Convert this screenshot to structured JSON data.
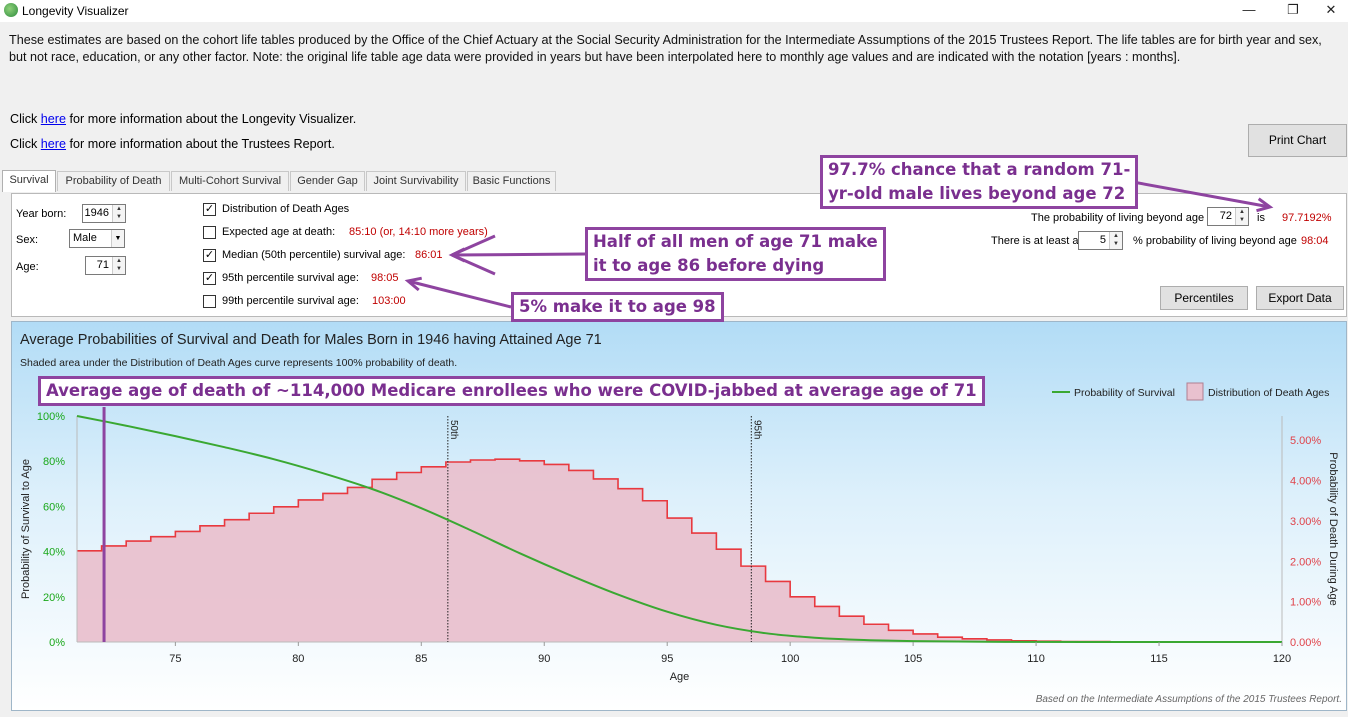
{
  "window": {
    "title": "Longevity Visualizer",
    "min": "—",
    "max": "❐",
    "close": "✕"
  },
  "intro": {
    "text": "These estimates are based on the cohort life tables produced by the Office of the Chief Actuary at the Social Security Administration for the Intermediate Assumptions of the 2015 Trustees Report. The life tables are for birth year and sex, but not race, education, or any other factor. Note: the original life table age data were provided in years but have been interpolated here to monthly age values and are indicated with the notation [years : months]."
  },
  "links": [
    {
      "prefix": "Click ",
      "link": "here",
      "suffix": " for more information about the Longevity Visualizer."
    },
    {
      "prefix": "Click ",
      "link": "here",
      "suffix": " for more information about the Trustees Report."
    }
  ],
  "buttons": {
    "print": "Print Chart",
    "percentiles": "Percentiles",
    "export": "Export Data"
  },
  "tabs": [
    "Survival",
    "Probability of Death",
    "Multi-Cohort Survival",
    "Gender Gap",
    "Joint Survivability",
    "Basic Functions"
  ],
  "controls": {
    "year_label": "Year born:",
    "year": "1946",
    "sex_label": "Sex:",
    "sex": "Male",
    "age_label": "Age:",
    "age": "71"
  },
  "options": [
    {
      "label": "Distribution of Death Ages",
      "checked": true,
      "value": ""
    },
    {
      "label": "Expected age at death:",
      "checked": false,
      "value": "85:10 (or, 14:10 more years)"
    },
    {
      "label": "Median (50th percentile) survival age:",
      "checked": true,
      "value": "86:01"
    },
    {
      "label": "95th percentile survival age:",
      "checked": true,
      "value": "98:05"
    },
    {
      "label": "99th percentile survival age:",
      "checked": false,
      "value": "103:00"
    }
  ],
  "prob_row": {
    "label": "The probability of living beyond age",
    "age": "72",
    "is": "is",
    "value": "97.7192%"
  },
  "pct_row": {
    "label1": "There is at least a",
    "pct": "5",
    "label2": "% probability of living beyond age",
    "value": "98:04"
  },
  "colors": {
    "survival": "#3aa832",
    "death_line": "#e8393f",
    "death_fill": "#e9c1cf",
    "annotation": "#8e44a0"
  },
  "chart_data": {
    "type": "area",
    "title": "Average Probabilities of Survival and Death for Males Born in 1946 having Attained Age 71",
    "subtitle": "Shaded area under the Distribution of Death Ages curve represents 100% probability of death.",
    "xlabel": "Age",
    "ylabel_left": "Probability of Survival to Age",
    "ylabel_right": "Probability of Death During Age",
    "xlim": [
      71,
      120
    ],
    "ylim_left": [
      0,
      100
    ],
    "ylim_right": [
      0,
      5.6
    ],
    "x_ticks": [
      75,
      80,
      85,
      90,
      95,
      100,
      105,
      110,
      115,
      120
    ],
    "y_left_ticks": [
      "0%",
      "20%",
      "40%",
      "60%",
      "80%",
      "100%"
    ],
    "y_right_ticks": [
      "0.00%",
      "1.00%",
      "2.00%",
      "3.00%",
      "4.00%",
      "5.00%"
    ],
    "legend": [
      "Probability of Survival",
      "Distribution of Death Ages"
    ],
    "legend_position": "top-right",
    "grid": false,
    "markers": [
      {
        "label": "50th",
        "x": 86.08
      },
      {
        "label": "95th",
        "x": 98.42
      }
    ],
    "series": [
      {
        "name": "Probability of Survival",
        "x": [
          71,
          73,
          75,
          77,
          79,
          81,
          83,
          85,
          87,
          89,
          91,
          93,
          95,
          97,
          99,
          101,
          103,
          105,
          108,
          112,
          120
        ],
        "values": [
          100,
          95.7,
          91.1,
          86.2,
          80.9,
          74.7,
          67.7,
          59.2,
          49.5,
          39.3,
          29.8,
          21.0,
          13.4,
          7.6,
          3.9,
          1.9,
          0.9,
          0.4,
          0.1,
          0.0,
          0.0
        ]
      },
      {
        "name": "Distribution of Death Ages",
        "x": [
          71,
          72,
          73,
          74,
          75,
          76,
          77,
          78,
          79,
          80,
          81,
          82,
          83,
          84,
          85,
          86,
          87,
          88,
          89,
          90,
          91,
          92,
          93,
          94,
          95,
          96,
          97,
          98,
          99,
          100,
          101,
          102,
          103,
          104,
          105,
          106,
          107,
          108,
          109,
          110,
          111,
          112,
          113,
          114,
          115,
          116,
          117,
          118,
          119
        ],
        "values": [
          2.26,
          2.38,
          2.5,
          2.61,
          2.74,
          2.88,
          3.03,
          3.19,
          3.35,
          3.52,
          3.68,
          3.83,
          4.03,
          4.2,
          4.34,
          4.46,
          4.51,
          4.53,
          4.49,
          4.4,
          4.25,
          4.04,
          3.8,
          3.5,
          3.07,
          2.7,
          2.3,
          1.88,
          1.5,
          1.12,
          0.88,
          0.64,
          0.44,
          0.29,
          0.2,
          0.12,
          0.08,
          0.05,
          0.03,
          0.02,
          0.01,
          0.01,
          0.0,
          0.0,
          0.0,
          0.0,
          0.0,
          0.0,
          0.0
        ]
      }
    ],
    "footnote": "Based on the Intermediate Assumptions of the 2015 Trustees Report."
  },
  "annotations": {
    "box1": [
      "97.7% chance that a random 71-",
      "yr-old male lives beyond age 72"
    ],
    "box2": [
      "Half of all men of age 71 make",
      "it to age 86 before dying"
    ],
    "box3": [
      "5% make it to age 98"
    ],
    "box4": [
      "Average age of death of ~114,000 Medicare enrollees who were COVID-jabbed at average age of 71"
    ],
    "marker_age": 72.1
  }
}
